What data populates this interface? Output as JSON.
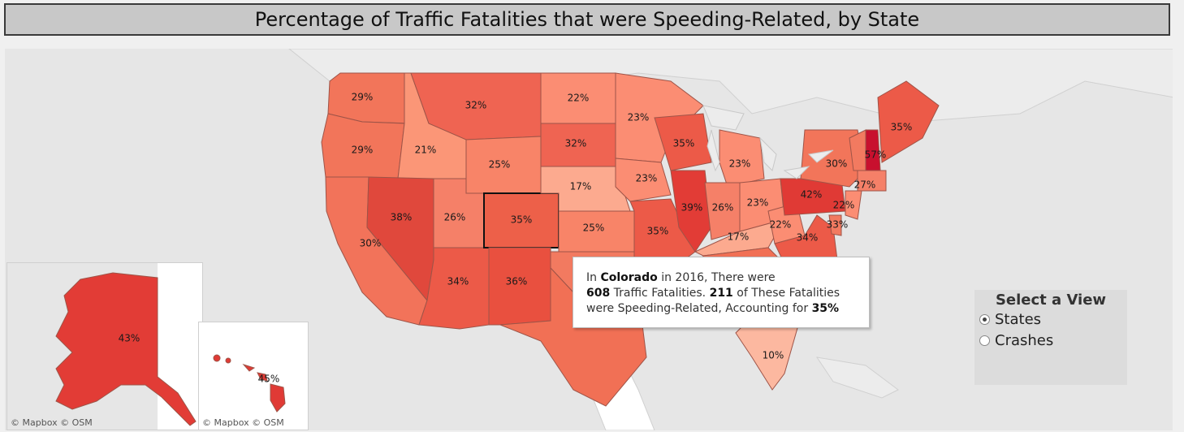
{
  "title": "Percentage of Traffic Fatalities that were Speeding-Related, by State",
  "map": {
    "credit_main": "© Mapbox  © OSM",
    "credit_hawaii": "© Mapbox  © OSM",
    "states": [
      {
        "name": "Washington",
        "value": "29%"
      },
      {
        "name": "Oregon",
        "value": "29%"
      },
      {
        "name": "California",
        "value": "30%"
      },
      {
        "name": "Idaho",
        "value": "21%"
      },
      {
        "name": "Nevada",
        "value": "38%"
      },
      {
        "name": "Montana",
        "value": "32%"
      },
      {
        "name": "Wyoming",
        "value": "25%"
      },
      {
        "name": "Utah",
        "value": "26%"
      },
      {
        "name": "Arizona",
        "value": "34%"
      },
      {
        "name": "Colorado",
        "value": "35%"
      },
      {
        "name": "New Mexico",
        "value": "36%"
      },
      {
        "name": "North Dakota",
        "value": "22%"
      },
      {
        "name": "South Dakota",
        "value": "32%"
      },
      {
        "name": "Nebraska",
        "value": "17%"
      },
      {
        "name": "Kansas",
        "value": "25%"
      },
      {
        "name": "Minnesota",
        "value": "23%"
      },
      {
        "name": "Iowa",
        "value": "23%"
      },
      {
        "name": "Missouri",
        "value": "35%"
      },
      {
        "name": "Wisconsin",
        "value": "35%"
      },
      {
        "name": "Illinois",
        "value": "39%"
      },
      {
        "name": "Michigan",
        "value": "23%"
      },
      {
        "name": "Indiana",
        "value": "26%"
      },
      {
        "name": "Ohio",
        "value": "23%"
      },
      {
        "name": "Kentucky",
        "value": "17%"
      },
      {
        "name": "West Virginia",
        "value": "22%"
      },
      {
        "name": "Pennsylvania",
        "value": "42%"
      },
      {
        "name": "New York",
        "value": "30%"
      },
      {
        "name": "Virginia",
        "value": "34%"
      },
      {
        "name": "New Jersey",
        "value": "22%"
      },
      {
        "name": "Delaware",
        "value": "33%"
      },
      {
        "name": "Connecticut",
        "value": "27%"
      },
      {
        "name": "New Hampshire",
        "value": "57%"
      },
      {
        "name": "Maine",
        "value": "35%"
      },
      {
        "name": "Florida",
        "value": "10%"
      },
      {
        "name": "Alaska",
        "value": "43%"
      },
      {
        "name": "Hawaii",
        "value": "45%"
      }
    ]
  },
  "tooltip": {
    "t1": "In ",
    "state": "Colorado",
    "t2": " in 2016, There were",
    "fatalities": "608",
    "t3": " Traffic Fatalities. ",
    "speeding": "211",
    "t4": " of These Fatalities",
    "t5": "were Speeding-Related, Accounting for ",
    "percent": "35%"
  },
  "selector": {
    "title": "Select a View",
    "options": [
      {
        "label": "States",
        "checked": true
      },
      {
        "label": "Crashes",
        "checked": false
      }
    ]
  },
  "colors": {
    "background": "#e6e6e6",
    "land": "#ffffff",
    "state_border": "#b05a4e",
    "scale_low": "#fcbba1",
    "scale_high": "#a50f15"
  }
}
